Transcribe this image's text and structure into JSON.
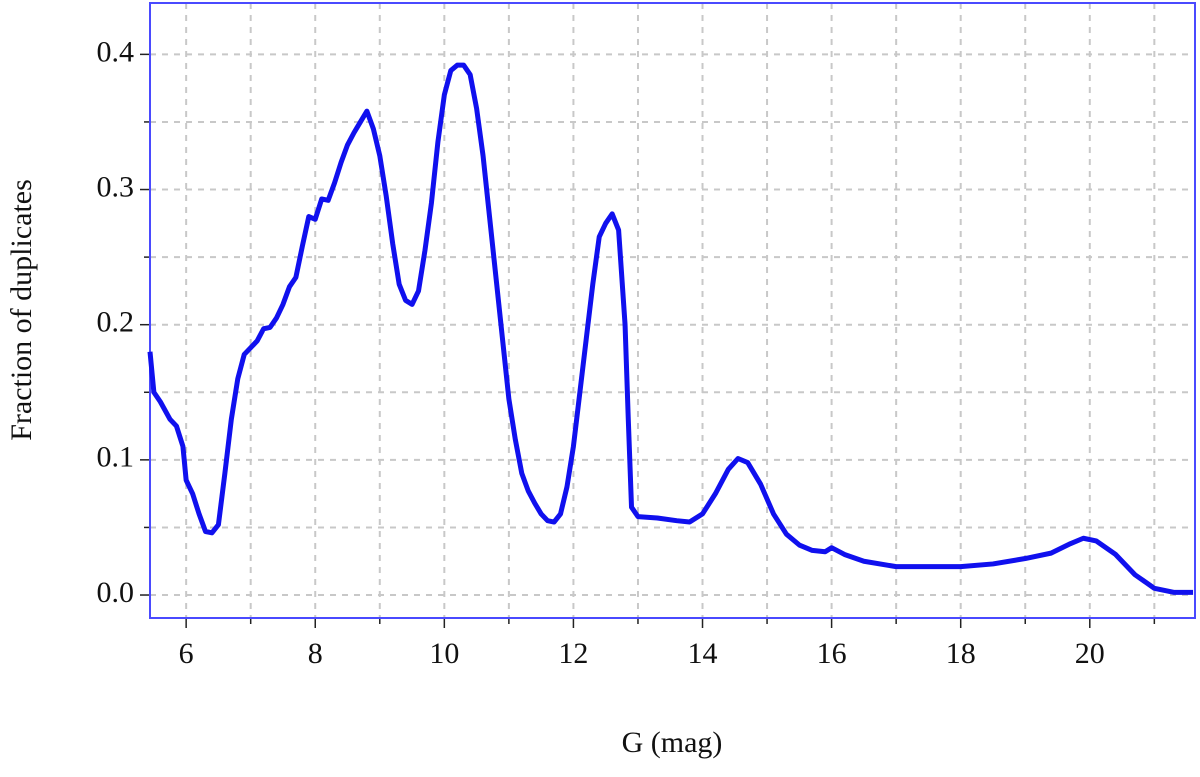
{
  "chart_data": {
    "type": "line",
    "xlabel": "G (mag)",
    "ylabel": "Fraction of duplicates",
    "xlim": [
      5.44,
      21.63
    ],
    "ylim": [
      -0.017,
      0.438
    ],
    "xticks": [
      6,
      8,
      10,
      12,
      14,
      16,
      18,
      20
    ],
    "yticks": [
      {
        "value": 0,
        "label": "0.0"
      },
      0.1,
      0.2,
      0.3,
      0.4
    ],
    "xminor": [
      7,
      9,
      11,
      13,
      15,
      17,
      19,
      21
    ],
    "yminor": [
      0.05,
      0.15,
      0.25,
      0.35
    ],
    "grid": true,
    "series": [
      {
        "color": "#1010ee",
        "x": [
          5.44,
          5.5,
          5.6,
          5.75,
          5.85,
          5.95,
          6.0,
          6.1,
          6.2,
          6.3,
          6.4,
          6.5,
          6.6,
          6.7,
          6.8,
          6.9,
          7.0,
          7.1,
          7.2,
          7.3,
          7.4,
          7.5,
          7.6,
          7.7,
          7.8,
          7.9,
          8.0,
          8.1,
          8.2,
          8.3,
          8.4,
          8.5,
          8.6,
          8.7,
          8.8,
          8.9,
          9.0,
          9.1,
          9.2,
          9.3,
          9.4,
          9.5,
          9.6,
          9.7,
          9.8,
          9.9,
          10.0,
          10.1,
          10.2,
          10.3,
          10.4,
          10.5,
          10.6,
          10.7,
          10.8,
          10.9,
          11.0,
          11.1,
          11.2,
          11.3,
          11.4,
          11.5,
          11.6,
          11.7,
          11.8,
          11.9,
          12.0,
          12.1,
          12.2,
          12.3,
          12.4,
          12.5,
          12.6,
          12.7,
          12.8,
          12.85,
          12.9,
          13.0,
          13.3,
          13.6,
          13.8,
          14.0,
          14.2,
          14.4,
          14.55,
          14.7,
          14.9,
          15.1,
          15.3,
          15.5,
          15.7,
          15.9,
          16.0,
          16.2,
          16.5,
          17.0,
          17.5,
          18.0,
          18.5,
          19.0,
          19.4,
          19.7,
          19.9,
          20.1,
          20.4,
          20.7,
          21.0,
          21.3,
          21.6
        ],
        "values": [
          0.18,
          0.15,
          0.143,
          0.13,
          0.125,
          0.11,
          0.085,
          0.075,
          0.06,
          0.047,
          0.046,
          0.052,
          0.09,
          0.13,
          0.16,
          0.178,
          0.183,
          0.188,
          0.197,
          0.198,
          0.205,
          0.215,
          0.228,
          0.235,
          0.258,
          0.28,
          0.278,
          0.293,
          0.292,
          0.305,
          0.32,
          0.333,
          0.342,
          0.35,
          0.358,
          0.345,
          0.325,
          0.295,
          0.26,
          0.23,
          0.218,
          0.215,
          0.225,
          0.255,
          0.29,
          0.335,
          0.37,
          0.388,
          0.392,
          0.392,
          0.385,
          0.36,
          0.325,
          0.28,
          0.235,
          0.19,
          0.145,
          0.115,
          0.09,
          0.077,
          0.068,
          0.06,
          0.055,
          0.054,
          0.06,
          0.08,
          0.11,
          0.15,
          0.19,
          0.23,
          0.265,
          0.275,
          0.282,
          0.27,
          0.2,
          0.13,
          0.065,
          0.058,
          0.057,
          0.055,
          0.054,
          0.06,
          0.075,
          0.093,
          0.101,
          0.098,
          0.082,
          0.06,
          0.045,
          0.037,
          0.033,
          0.032,
          0.035,
          0.03,
          0.025,
          0.021,
          0.021,
          0.021,
          0.023,
          0.027,
          0.031,
          0.038,
          0.042,
          0.04,
          0.03,
          0.015,
          0.005,
          0.002,
          0.002
        ]
      }
    ]
  }
}
